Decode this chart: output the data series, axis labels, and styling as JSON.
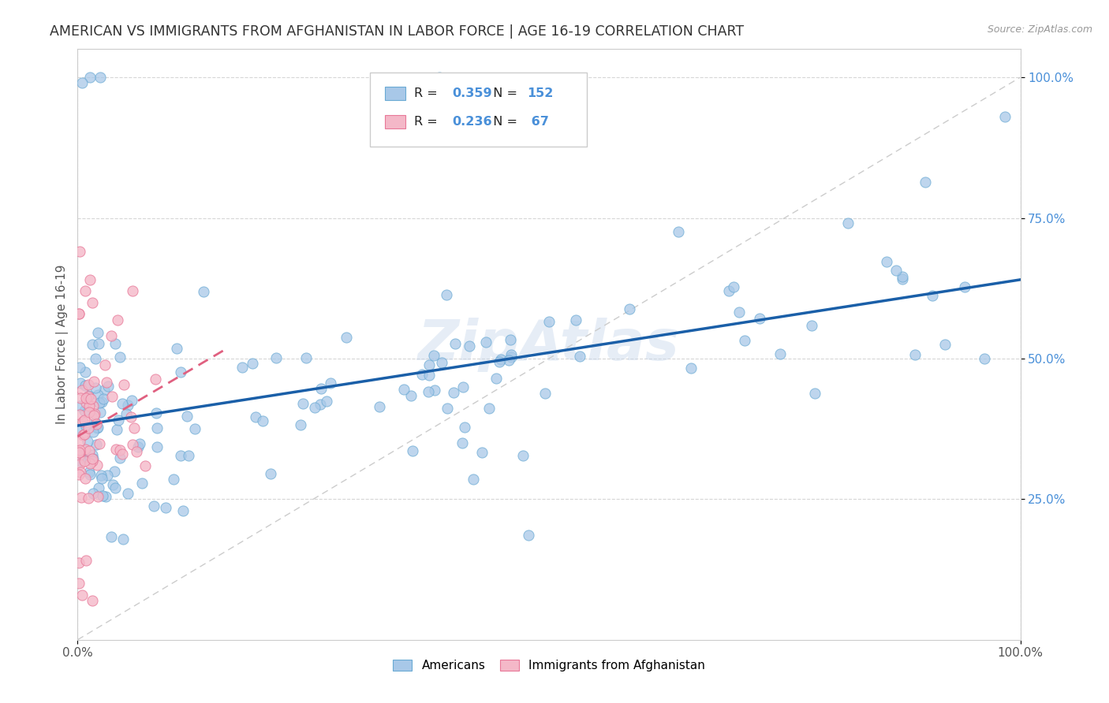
{
  "title": "AMERICAN VS IMMIGRANTS FROM AFGHANISTAN IN LABOR FORCE | AGE 16-19 CORRELATION CHART",
  "source": "Source: ZipAtlas.com",
  "ylabel": "In Labor Force | Age 16-19",
  "watermark": "ZipAtlas",
  "blue_dot_color": "#a8c8e8",
  "blue_dot_edge": "#6aaad4",
  "pink_dot_color": "#f4b8c8",
  "pink_dot_edge": "#e87898",
  "blue_line_color": "#1a5fa8",
  "pink_line_color": "#e06080",
  "diag_line_color": "#cccccc",
  "legend_R_blue": "0.359",
  "legend_N_blue": "152",
  "legend_R_pink": "0.236",
  "legend_N_pink": " 67",
  "title_fontsize": 12.5,
  "label_fontsize": 11,
  "tick_fontsize": 11,
  "tick_color_blue": "#4a90d9",
  "tick_color_x": "#555555"
}
